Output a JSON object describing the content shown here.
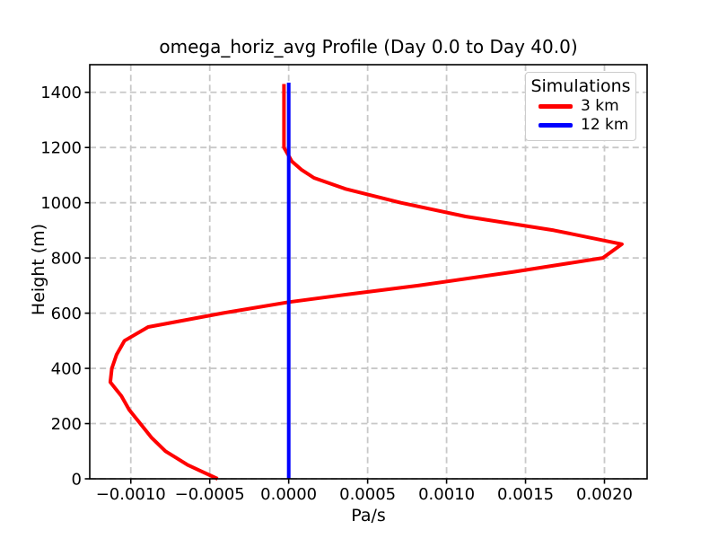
{
  "chart_data": {
    "type": "line",
    "title": "omega_horiz_avg Profile (Day 0.0 to Day 40.0)",
    "xlabel": "Pa/s",
    "ylabel": "Height (m)",
    "xlim": [
      -0.00126,
      0.00227
    ],
    "ylim": [
      0,
      1500
    ],
    "x_ticks": [
      -0.001,
      -0.0005,
      0.0,
      0.0005,
      0.001,
      0.0015,
      0.002
    ],
    "x_tick_labels": [
      "−0.0010",
      "−0.0005",
      "0.0000",
      "0.0005",
      "0.0010",
      "0.0015",
      "0.0020"
    ],
    "y_ticks": [
      0,
      200,
      400,
      600,
      800,
      1000,
      1200,
      1400
    ],
    "y_tick_labels": [
      "0",
      "200",
      "400",
      "600",
      "800",
      "1000",
      "1200",
      "1400"
    ],
    "grid": true,
    "grid_style": "dashed",
    "legend": {
      "title": "Simulations",
      "position": "upper right",
      "entries": [
        "3 km",
        "12 km"
      ]
    },
    "series": [
      {
        "name": "3 km",
        "color": "#ff0000",
        "height_m": [
          0,
          25,
          50,
          75,
          100,
          150,
          200,
          250,
          300,
          350,
          400,
          450,
          500,
          550,
          600,
          640,
          670,
          700,
          750,
          800,
          850,
          900,
          950,
          1000,
          1050,
          1090,
          1120,
          1150,
          1200,
          1300,
          1430
        ],
        "omega_pa_s": [
          -0.00045,
          -0.000545,
          -0.00064,
          -0.00071,
          -0.00078,
          -0.00087,
          -0.00094,
          -0.00101,
          -0.00106,
          -0.00113,
          -0.00112,
          -0.00109,
          -0.00104,
          -0.00089,
          -0.00042,
          0.0,
          0.0004,
          0.00082,
          0.00143,
          0.00199,
          0.00211,
          0.00168,
          0.00112,
          0.00071,
          0.00036,
          0.00016,
          8e-05,
          2e-05,
          -3e-05,
          -3e-05,
          -3e-05
        ]
      },
      {
        "name": "12 km",
        "color": "#0000ff",
        "height_m": [
          0,
          200,
          400,
          600,
          800,
          1000,
          1200,
          1435
        ],
        "omega_pa_s": [
          0.0,
          0.0,
          0.0,
          0.0,
          0.0,
          0.0,
          0.0,
          0.0
        ]
      }
    ],
    "styles": {
      "grid_color": "#c8c8c8",
      "axis_color": "#000000",
      "background": "#ffffff"
    }
  }
}
